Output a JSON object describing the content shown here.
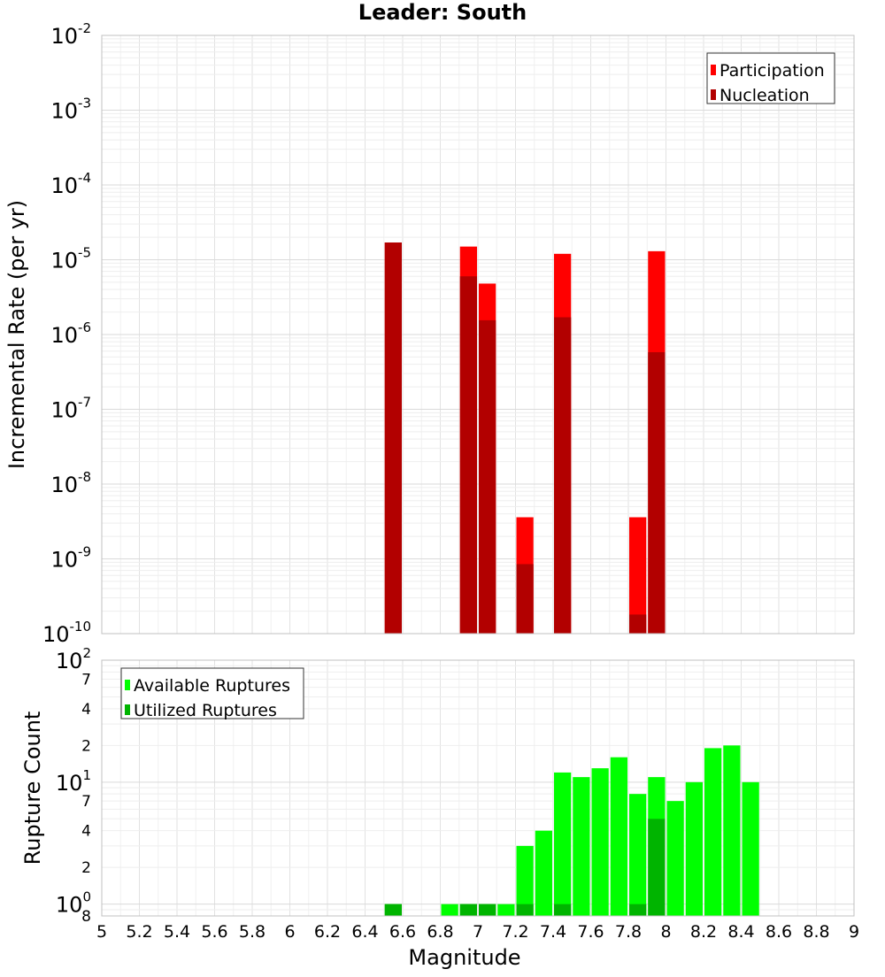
{
  "chart_data": [
    {
      "type": "bar",
      "title": "Leader: South",
      "ylabel": "Incremental Rate (per yr)",
      "xlabel": "",
      "y_scale": "log",
      "ylim": [
        1e-10,
        0.01
      ],
      "xlim": [
        5,
        9
      ],
      "bar_width": 0.1,
      "grid": true,
      "legend_position": "top-right",
      "y_ticks": [
        {
          "value": 0.01,
          "base": "10",
          "exp": "-2"
        },
        {
          "value": 0.001,
          "base": "10",
          "exp": "-3"
        },
        {
          "value": 0.0001,
          "base": "10",
          "exp": "-4"
        },
        {
          "value": 1e-05,
          "base": "10",
          "exp": "-5"
        },
        {
          "value": 1e-06,
          "base": "10",
          "exp": "-6"
        },
        {
          "value": 1e-07,
          "base": "10",
          "exp": "-7"
        },
        {
          "value": 1e-08,
          "base": "10",
          "exp": "-8"
        },
        {
          "value": 1e-09,
          "base": "10",
          "exp": "-9"
        },
        {
          "value": 1e-10,
          "base": "10",
          "exp": "-10"
        }
      ],
      "series": [
        {
          "name": "Participation",
          "color": "#ff0000",
          "points": [
            {
              "x": 6.55,
              "y": 1.7e-05
            },
            {
              "x": 6.95,
              "y": 1.5e-05
            },
            {
              "x": 7.05,
              "y": 4.8e-06
            },
            {
              "x": 7.25,
              "y": 3.6e-09
            },
            {
              "x": 7.45,
              "y": 1.2e-05
            },
            {
              "x": 7.85,
              "y": 3.6e-09
            },
            {
              "x": 7.95,
              "y": 1.3e-05
            }
          ]
        },
        {
          "name": "Nucleation",
          "color": "#b20000",
          "points": [
            {
              "x": 6.55,
              "y": 1.7e-05
            },
            {
              "x": 6.95,
              "y": 6e-06
            },
            {
              "x": 7.05,
              "y": 1.55e-06
            },
            {
              "x": 7.25,
              "y": 8.5e-10
            },
            {
              "x": 7.45,
              "y": 1.7e-06
            },
            {
              "x": 7.85,
              "y": 1.8e-10
            },
            {
              "x": 7.95,
              "y": 5.8e-07
            }
          ]
        }
      ]
    },
    {
      "type": "bar",
      "title": "",
      "ylabel": "Rupture Count",
      "xlabel": "Magnitude",
      "y_scale": "log",
      "ylim": [
        0.8,
        100
      ],
      "xlim": [
        5,
        9
      ],
      "bar_width": 0.1,
      "grid": true,
      "legend_position": "top-left",
      "x_ticks": [
        "5",
        "5.2",
        "5.4",
        "5.6",
        "5.8",
        "6",
        "6.2",
        "6.4",
        "6.6",
        "6.8",
        "7",
        "7.2",
        "7.4",
        "7.6",
        "7.8",
        "8",
        "8.2",
        "8.4",
        "8.6",
        "8.8",
        "9"
      ],
      "y_ticks": [
        {
          "value": 100,
          "base": "10",
          "exp": "2"
        },
        {
          "value": 70,
          "base": "7",
          "exp": ""
        },
        {
          "value": 40,
          "base": "4",
          "exp": ""
        },
        {
          "value": 20,
          "base": "2",
          "exp": ""
        },
        {
          "value": 10,
          "base": "10",
          "exp": "1"
        },
        {
          "value": 7,
          "base": "7",
          "exp": ""
        },
        {
          "value": 4,
          "base": "4",
          "exp": ""
        },
        {
          "value": 2,
          "base": "2",
          "exp": ""
        },
        {
          "value": 1,
          "base": "10",
          "exp": "0"
        },
        {
          "value": 0.8,
          "base": "8",
          "exp": ""
        }
      ],
      "series": [
        {
          "name": "Available Ruptures",
          "color": "#00ff00",
          "points": [
            {
              "x": 6.55,
              "y": 1
            },
            {
              "x": 6.85,
              "y": 1
            },
            {
              "x": 6.95,
              "y": 1
            },
            {
              "x": 7.05,
              "y": 1
            },
            {
              "x": 7.15,
              "y": 1
            },
            {
              "x": 7.25,
              "y": 3
            },
            {
              "x": 7.35,
              "y": 4
            },
            {
              "x": 7.45,
              "y": 12
            },
            {
              "x": 7.55,
              "y": 11
            },
            {
              "x": 7.65,
              "y": 13
            },
            {
              "x": 7.75,
              "y": 16
            },
            {
              "x": 7.85,
              "y": 8
            },
            {
              "x": 7.95,
              "y": 11
            },
            {
              "x": 8.05,
              "y": 7
            },
            {
              "x": 8.15,
              "y": 10
            },
            {
              "x": 8.25,
              "y": 19
            },
            {
              "x": 8.35,
              "y": 20
            },
            {
              "x": 8.45,
              "y": 10
            }
          ]
        },
        {
          "name": "Utilized Ruptures",
          "color": "#00b400",
          "points": [
            {
              "x": 6.55,
              "y": 1
            },
            {
              "x": 6.95,
              "y": 1
            },
            {
              "x": 7.05,
              "y": 1
            },
            {
              "x": 7.25,
              "y": 1
            },
            {
              "x": 7.45,
              "y": 1
            },
            {
              "x": 7.85,
              "y": 1
            },
            {
              "x": 7.95,
              "y": 5
            }
          ]
        }
      ]
    }
  ]
}
